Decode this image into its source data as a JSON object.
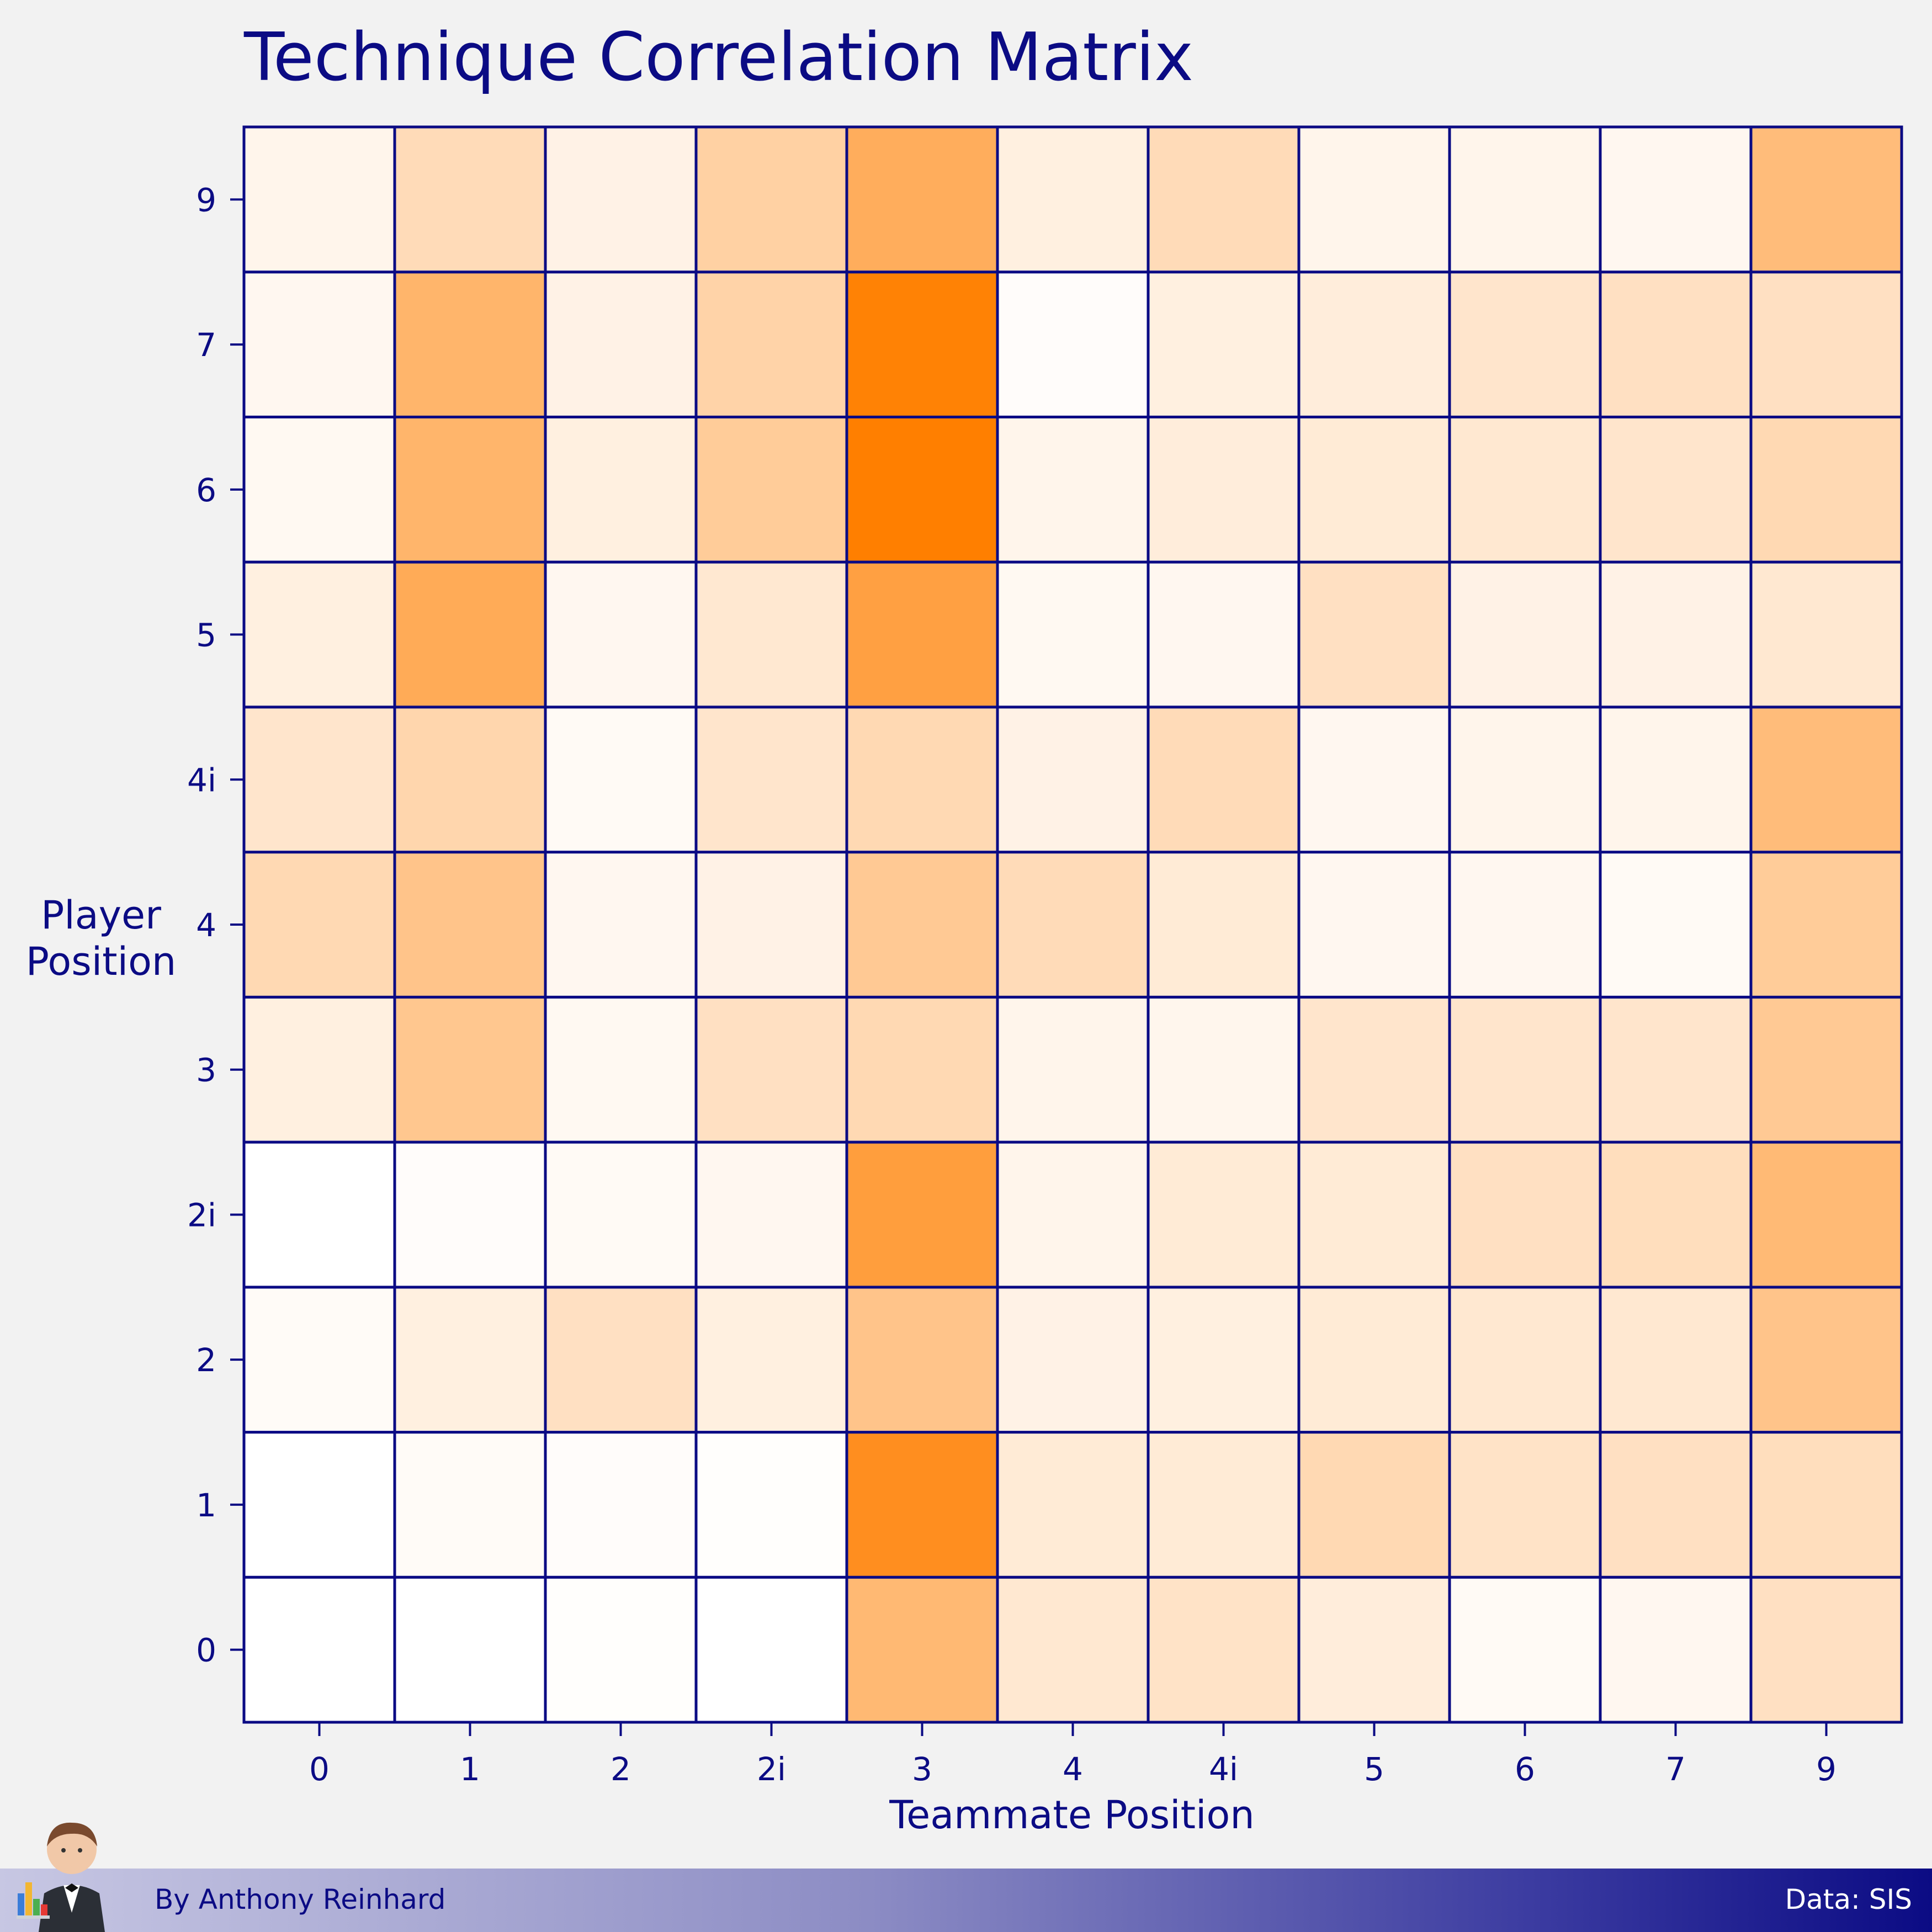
{
  "chart_data": {
    "type": "heatmap",
    "title": "Technique Correlation Matrix",
    "xlabel": "Teammate Position",
    "ylabel": "Player Position",
    "x_categories": [
      "0",
      "1",
      "2",
      "2i",
      "3",
      "4",
      "4i",
      "5",
      "6",
      "7",
      "9"
    ],
    "y_categories": [
      "0",
      "1",
      "2",
      "2i",
      "3",
      "4",
      "4i",
      "5",
      "6",
      "7",
      "9"
    ],
    "color_scale": {
      "low": "#ffffff",
      "high": "#ff7f00"
    },
    "values": [
      [
        0.0,
        0.0,
        0.01,
        0.0,
        0.55,
        0.18,
        0.22,
        0.14,
        0.04,
        0.06,
        0.24
      ],
      [
        0.0,
        0.03,
        0.02,
        0.01,
        0.88,
        0.16,
        0.16,
        0.3,
        0.22,
        0.24,
        0.26
      ],
      [
        0.03,
        0.12,
        0.24,
        0.12,
        0.46,
        0.1,
        0.12,
        0.16,
        0.18,
        0.18,
        0.46
      ],
      [
        0.0,
        0.02,
        0.04,
        0.06,
        0.76,
        0.08,
        0.16,
        0.16,
        0.24,
        0.26,
        0.54
      ],
      [
        0.12,
        0.44,
        0.05,
        0.24,
        0.3,
        0.08,
        0.07,
        0.2,
        0.2,
        0.2,
        0.42
      ],
      [
        0.3,
        0.46,
        0.06,
        0.1,
        0.42,
        0.28,
        0.16,
        0.06,
        0.06,
        0.04,
        0.4
      ],
      [
        0.2,
        0.32,
        0.04,
        0.2,
        0.3,
        0.1,
        0.28,
        0.06,
        0.08,
        0.08,
        0.52
      ],
      [
        0.12,
        0.66,
        0.06,
        0.18,
        0.74,
        0.05,
        0.06,
        0.24,
        0.1,
        0.1,
        0.18
      ],
      [
        0.05,
        0.58,
        0.12,
        0.4,
        1.0,
        0.08,
        0.14,
        0.16,
        0.18,
        0.2,
        0.3
      ],
      [
        0.06,
        0.58,
        0.1,
        0.34,
        0.98,
        0.02,
        0.12,
        0.14,
        0.2,
        0.24,
        0.24
      ],
      [
        0.08,
        0.28,
        0.1,
        0.36,
        0.64,
        0.12,
        0.28,
        0.08,
        0.08,
        0.06,
        0.52
      ]
    ],
    "grid": true,
    "gridline_color": "#0b0b84"
  },
  "footer": {
    "byline": "By Anthony Reinhard",
    "source": "Data: SIS"
  },
  "colors": {
    "text": "#0b0b84",
    "background": "#f2f2f2"
  },
  "icons": {
    "mascot": "waiter-with-chart-icon"
  }
}
